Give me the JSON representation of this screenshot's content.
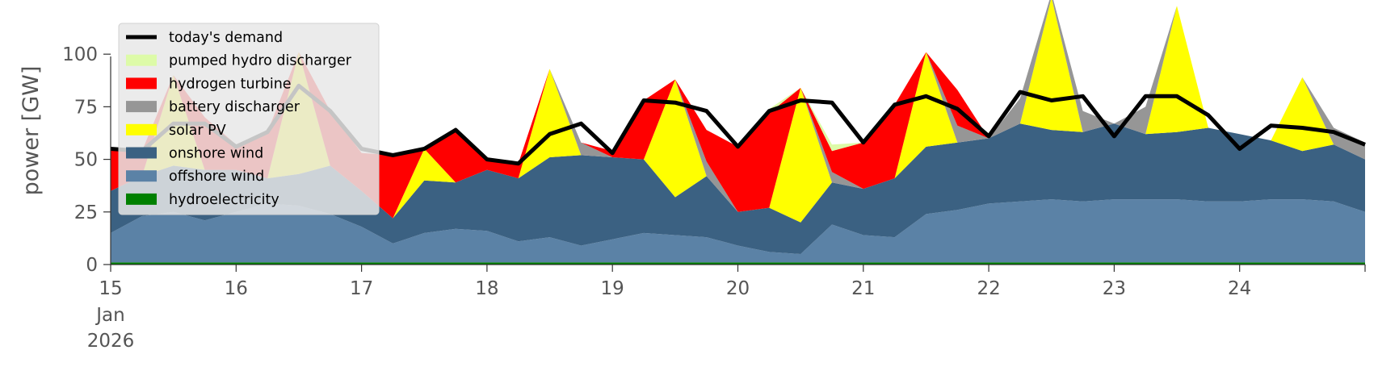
{
  "chart_data": {
    "type": "area",
    "ylabel": "power [GW]",
    "ylim": [
      0,
      120
    ],
    "xlim": [
      "2026-01-15",
      "2026-01-25"
    ],
    "grid": false,
    "legend_position": "upper-left",
    "x_ticks": [
      {
        "date": "2026-01-15",
        "label": "15",
        "sublabels": [
          "Jan",
          "2026"
        ]
      },
      {
        "date": "2026-01-16",
        "label": "16"
      },
      {
        "date": "2026-01-17",
        "label": "17"
      },
      {
        "date": "2026-01-18",
        "label": "18"
      },
      {
        "date": "2026-01-19",
        "label": "19"
      },
      {
        "date": "2026-01-20",
        "label": "20"
      },
      {
        "date": "2026-01-21",
        "label": "21"
      },
      {
        "date": "2026-01-22",
        "label": "22"
      },
      {
        "date": "2026-01-23",
        "label": "23"
      },
      {
        "date": "2026-01-24",
        "label": "24"
      }
    ],
    "y_ticks": [
      0,
      25,
      50,
      75,
      100
    ],
    "x": [
      "2026-01-15 00:00",
      "2026-01-15 06:00",
      "2026-01-15 12:00",
      "2026-01-15 18:00",
      "2026-01-16 00:00",
      "2026-01-16 06:00",
      "2026-01-16 12:00",
      "2026-01-16 18:00",
      "2026-01-17 00:00",
      "2026-01-17 06:00",
      "2026-01-17 12:00",
      "2026-01-17 18:00",
      "2026-01-18 00:00",
      "2026-01-18 06:00",
      "2026-01-18 12:00",
      "2026-01-18 18:00",
      "2026-01-19 00:00",
      "2026-01-19 06:00",
      "2026-01-19 12:00",
      "2026-01-19 18:00",
      "2026-01-20 00:00",
      "2026-01-20 06:00",
      "2026-01-20 12:00",
      "2026-01-20 18:00",
      "2026-01-21 00:00",
      "2026-01-21 06:00",
      "2026-01-21 12:00",
      "2026-01-21 18:00",
      "2026-01-22 00:00",
      "2026-01-22 06:00",
      "2026-01-22 12:00",
      "2026-01-22 18:00",
      "2026-01-23 00:00",
      "2026-01-23 06:00",
      "2026-01-23 12:00",
      "2026-01-23 18:00",
      "2026-01-24 00:00",
      "2026-01-24 06:00",
      "2026-01-24 12:00",
      "2026-01-24 18:00",
      "2026-01-25 00:00"
    ],
    "series": [
      {
        "name": "hydroelectricity",
        "color": "#008000",
        "values": [
          1,
          1,
          1,
          1,
          1,
          1,
          1,
          1,
          1,
          1,
          1,
          1,
          1,
          1,
          1,
          1,
          1,
          1,
          1,
          1,
          1,
          1,
          1,
          1,
          1,
          1,
          1,
          1,
          1,
          1,
          1,
          1,
          1,
          1,
          1,
          1,
          1,
          1,
          1,
          1,
          1
        ]
      },
      {
        "name": "offshore wind",
        "color": "#5b82a6",
        "values": [
          14,
          22,
          24,
          20,
          24,
          28,
          27,
          23,
          17,
          9,
          14,
          16,
          15,
          10,
          12,
          8,
          11,
          14,
          13,
          12,
          8,
          5,
          4,
          18,
          13,
          12,
          23,
          25,
          28,
          29,
          30,
          29,
          30,
          30,
          30,
          29,
          29,
          30,
          30,
          29,
          24
        ]
      },
      {
        "name": "onshore wind",
        "color": "#3b6182",
        "values": [
          20,
          19,
          22,
          24,
          20,
          12,
          15,
          23,
          17,
          12,
          25,
          22,
          29,
          30,
          38,
          43,
          39,
          35,
          18,
          29,
          16,
          21,
          15,
          20,
          22,
          28,
          32,
          32,
          31,
          37,
          33,
          33,
          36,
          31,
          32,
          35,
          32,
          28,
          23,
          27,
          25
        ]
      },
      {
        "name": "solar PV",
        "color": "#ffff00",
        "values": [
          0,
          0,
          43,
          0,
          0,
          0,
          58,
          0,
          0,
          0,
          15,
          0,
          0,
          0,
          42,
          0,
          0,
          0,
          56,
          0,
          0,
          0,
          64,
          0,
          0,
          0,
          45,
          0,
          0,
          0,
          63,
          0,
          0,
          0,
          60,
          0,
          0,
          0,
          35,
          0,
          0
        ]
      },
      {
        "name": "battery discharger",
        "color": "#969696",
        "values": [
          0,
          0,
          0,
          0,
          0,
          0,
          0,
          0,
          0,
          0,
          0,
          0,
          0,
          0,
          0,
          6,
          0,
          0,
          0,
          7,
          0,
          0,
          0,
          5,
          0,
          0,
          0,
          8,
          0,
          12,
          2,
          10,
          0,
          13,
          0,
          0,
          0,
          0,
          0,
          8,
          8
        ]
      },
      {
        "name": "hydrogen turbine",
        "color": "#ff0000",
        "values": [
          20,
          12,
          0,
          25,
          12,
          22,
          0,
          26,
          18,
          30,
          0,
          26,
          5,
          7,
          0,
          0,
          3,
          28,
          0,
          15,
          31,
          45,
          0,
          10,
          22,
          35,
          0,
          17,
          0,
          0,
          0,
          0,
          0,
          0,
          0,
          0,
          0,
          0,
          0,
          0,
          0
        ]
      },
      {
        "name": "pumped hydro discharger",
        "color": "#ddfba8",
        "values": [
          0,
          0,
          0,
          0,
          0,
          0,
          0,
          0,
          0,
          0,
          0,
          0,
          0,
          0,
          0,
          0,
          0,
          0,
          0,
          0,
          0,
          2,
          0,
          3,
          0,
          0,
          0,
          0,
          0,
          0,
          0,
          0,
          0,
          0,
          0,
          0,
          0,
          0,
          0,
          0,
          0
        ]
      },
      {
        "name": "today's demand",
        "color": "#000000",
        "kind": "line",
        "values": [
          55,
          54,
          67,
          67,
          56,
          63,
          85,
          73,
          55,
          52,
          55,
          64,
          50,
          48,
          62,
          67,
          53,
          78,
          77,
          73,
          56,
          73,
          78,
          77,
          58,
          76,
          80,
          74,
          61,
          82,
          78,
          80,
          61,
          80,
          80,
          71,
          55,
          66,
          65,
          63,
          57
        ]
      }
    ]
  }
}
